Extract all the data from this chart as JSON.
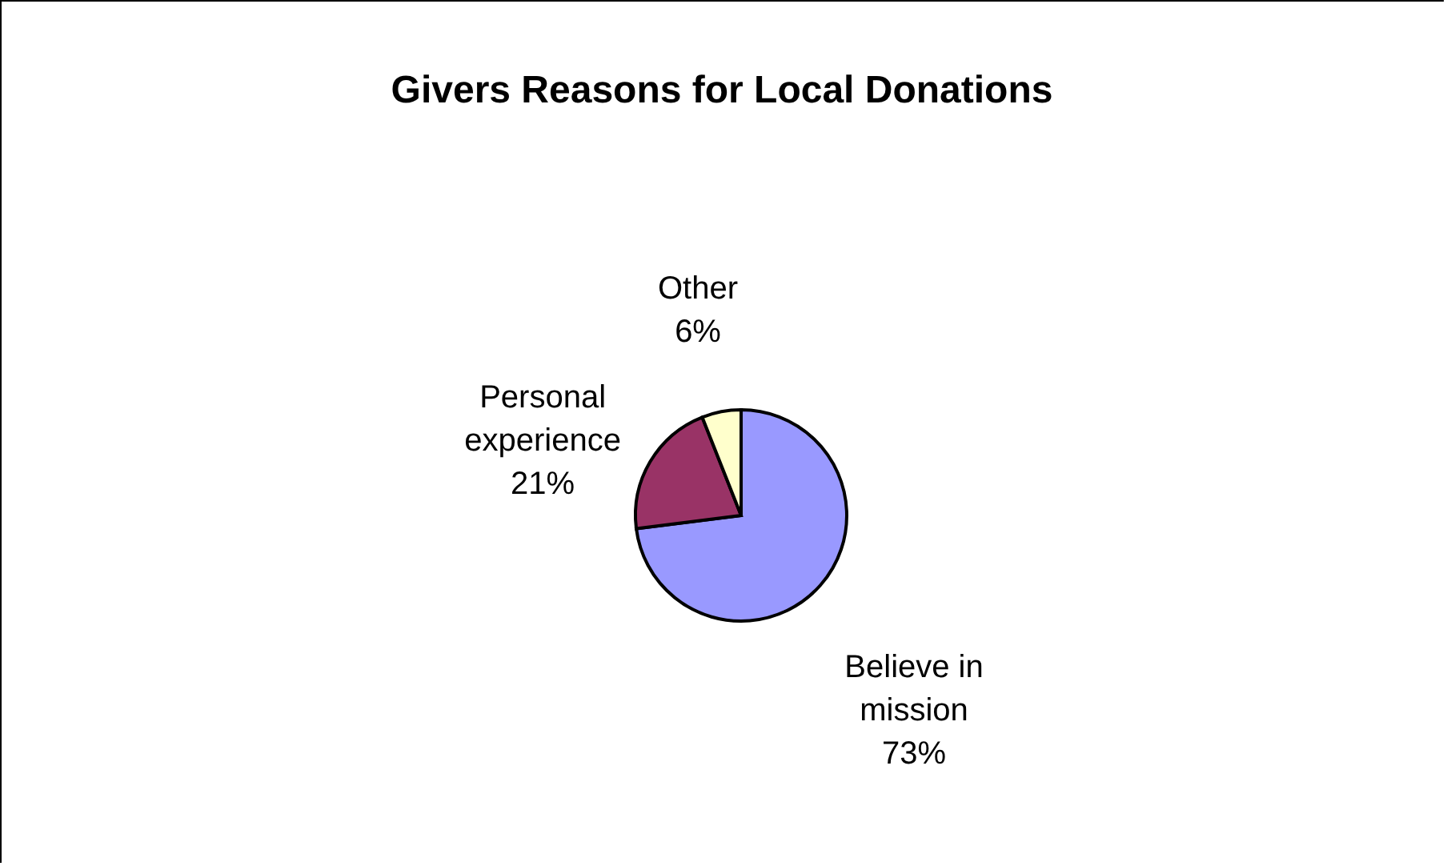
{
  "chart_data": {
    "type": "pie",
    "title": "Givers Reasons for Local Donations",
    "categories": [
      "Believe in mission",
      "Personal experience",
      "Other"
    ],
    "values": [
      73,
      21,
      6
    ],
    "colors": [
      "#9999ff",
      "#993366",
      "#ffffcc"
    ],
    "value_labels": [
      "73%",
      "21%",
      "6%"
    ],
    "legend": false
  }
}
